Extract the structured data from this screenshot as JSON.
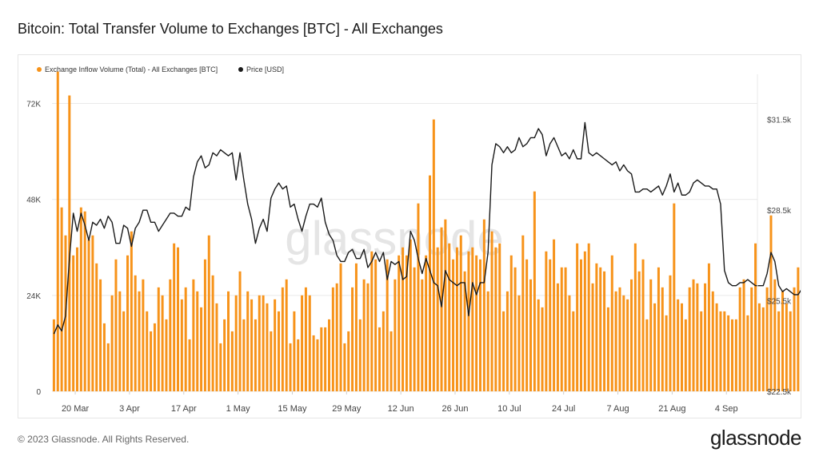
{
  "header": {
    "title": "Bitcoin: Total Transfer Volume to Exchanges [BTC] - All Exchanges"
  },
  "footer": {
    "copyright": "© 2023 Glassnode. All Rights Reserved.",
    "logo": "glassnode"
  },
  "watermark": "glassnode",
  "colors": {
    "bar": "#f7931a",
    "line": "#1a1a1a",
    "grid": "#e9e9e9",
    "axis_text": "#444444"
  },
  "chart_data": {
    "type": "bar",
    "title": "Bitcoin: Total Transfer Volume to Exchanges [BTC] - All Exchanges",
    "legend_position": "top-left",
    "grid": true,
    "x_start": "2023-03-14",
    "x_end": "2023-09-12",
    "x_ticks": [
      {
        "label": "20 Mar",
        "date": "2023-03-20"
      },
      {
        "label": "3 Apr",
        "date": "2023-04-03"
      },
      {
        "label": "17 Apr",
        "date": "2023-04-17"
      },
      {
        "label": "1 May",
        "date": "2023-05-01"
      },
      {
        "label": "15 May",
        "date": "2023-05-15"
      },
      {
        "label": "29 May",
        "date": "2023-05-29"
      },
      {
        "label": "12 Jun",
        "date": "2023-06-12"
      },
      {
        "label": "26 Jun",
        "date": "2023-06-26"
      },
      {
        "label": "10 Jul",
        "date": "2023-07-10"
      },
      {
        "label": "24 Jul",
        "date": "2023-07-24"
      },
      {
        "label": "7 Aug",
        "date": "2023-08-07"
      },
      {
        "label": "21 Aug",
        "date": "2023-08-21"
      },
      {
        "label": "4 Sep",
        "date": "2023-09-04"
      }
    ],
    "y_left": {
      "ylim": [
        0,
        79300
      ],
      "ticks": [
        {
          "label": "0",
          "value": 0
        },
        {
          "label": "24K",
          "value": 24000
        },
        {
          "label": "48K",
          "value": 48000
        },
        {
          "label": "72K",
          "value": 72000
        }
      ]
    },
    "y_right": {
      "ylim": [
        22500,
        33000
      ],
      "ticks": [
        {
          "label": "$22.5k",
          "value": 22500
        },
        {
          "label": "$25.5k",
          "value": 25500
        },
        {
          "label": "$28.5k",
          "value": 28500
        },
        {
          "label": "$31.5k",
          "value": 31500
        }
      ]
    },
    "series": [
      {
        "name": "Exchange Inflow Volume (Total) - All Exchanges [BTC]",
        "type": "bar",
        "axis": "left",
        "values": [
          18000,
          80000,
          46000,
          39000,
          74000,
          34000,
          36000,
          46000,
          45000,
          38000,
          39000,
          32000,
          28000,
          17000,
          12000,
          24000,
          33000,
          25000,
          20000,
          34000,
          40000,
          29000,
          25000,
          28000,
          20000,
          15000,
          17000,
          26000,
          24000,
          18000,
          28000,
          37000,
          36000,
          23000,
          26000,
          13000,
          28000,
          25000,
          21000,
          33000,
          39000,
          29000,
          22000,
          12000,
          18000,
          25000,
          15000,
          24000,
          30000,
          18000,
          25000,
          23000,
          18000,
          24000,
          24000,
          22000,
          15000,
          23000,
          20000,
          26000,
          28000,
          12000,
          20000,
          13000,
          24000,
          26000,
          24000,
          14000,
          13000,
          16000,
          16000,
          18000,
          26000,
          27000,
          32000,
          12000,
          15000,
          26000,
          32000,
          18000,
          28000,
          27000,
          35000,
          33000,
          16000,
          20000,
          33000,
          15000,
          28000,
          34000,
          36000,
          34000,
          38000,
          31000,
          47000,
          28000,
          34000,
          54000,
          68000,
          36000,
          41000,
          43000,
          37000,
          33000,
          36000,
          39000,
          30000,
          35000,
          36000,
          34000,
          33000,
          43000,
          25000,
          40000,
          36000,
          37000,
          20000,
          25000,
          34000,
          31000,
          24000,
          39000,
          33000,
          28000,
          50000,
          23000,
          21000,
          35000,
          33000,
          38000,
          27000,
          31000,
          31000,
          24000,
          20000,
          37000,
          33000,
          35000,
          37000,
          27000,
          32000,
          31000,
          30000,
          21000,
          34000,
          25000,
          26000,
          24000,
          23000,
          28000,
          37000,
          30000,
          33000,
          18000,
          28000,
          22000,
          31000,
          26000,
          19000,
          29000,
          47000,
          23000,
          22000,
          18000,
          26000,
          28000,
          27000,
          20000,
          27000,
          32000,
          25000,
          22000,
          20000,
          20000,
          19000,
          18000,
          18000,
          26000,
          28000,
          19000,
          26000,
          37000,
          22000,
          21000,
          26000,
          44000,
          28000,
          20000,
          25000,
          22000,
          20000,
          26000,
          31000,
          24000,
          18000,
          18000
        ]
      },
      {
        "name": "Price [USD]",
        "type": "line",
        "axis": "right",
        "values": [
          24400,
          24700,
          24500,
          25000,
          26900,
          28400,
          27800,
          28400,
          28000,
          27500,
          28100,
          28000,
          28200,
          27900,
          28300,
          28100,
          27400,
          27400,
          28000,
          27900,
          27300,
          27900,
          28100,
          28500,
          28500,
          28100,
          28100,
          27800,
          28000,
          28200,
          28400,
          28400,
          28300,
          28300,
          28600,
          28500,
          29600,
          30100,
          30300,
          29900,
          30000,
          30400,
          30300,
          30500,
          30400,
          30300,
          30400,
          29500,
          30400,
          29500,
          28700,
          28200,
          27400,
          27900,
          28200,
          27800,
          28900,
          29200,
          29400,
          29200,
          29300,
          28600,
          28700,
          28200,
          27800,
          28300,
          28700,
          28700,
          28600,
          28900,
          28100,
          27700,
          27500,
          27000,
          26800,
          26800,
          27100,
          27200,
          26900,
          26900,
          27200,
          26600,
          26800,
          27100,
          26800,
          27100,
          26200,
          26800,
          26700,
          26800,
          26200,
          26300,
          27800,
          27500,
          26900,
          26400,
          26900,
          26500,
          26100,
          26000,
          25300,
          26500,
          26200,
          26100,
          26000,
          26100,
          26100,
          25000,
          26100,
          25700,
          26100,
          26100,
          27100,
          30000,
          30700,
          30600,
          30400,
          30600,
          30400,
          30500,
          30900,
          30600,
          30700,
          30900,
          30900,
          31200,
          31000,
          30300,
          30700,
          30900,
          30600,
          30300,
          30400,
          30200,
          30500,
          30200,
          30200,
          31400,
          30400,
          30300,
          30400,
          30300,
          30200,
          30100,
          30000,
          30100,
          29800,
          30000,
          29800,
          29700,
          29100,
          29100,
          29200,
          29200,
          29100,
          29200,
          29300,
          29000,
          29300,
          29700,
          29100,
          29400,
          29000,
          29000,
          29100,
          29400,
          29500,
          29400,
          29300,
          29300,
          29200,
          29200,
          28700,
          26500,
          26100,
          26000,
          26000,
          26100,
          26100,
          26200,
          26100,
          26000,
          26000,
          26000,
          26400,
          27100,
          26800,
          26000,
          25800,
          25900,
          25800,
          25700,
          25700,
          25900,
          26100,
          25900
        ]
      }
    ]
  }
}
